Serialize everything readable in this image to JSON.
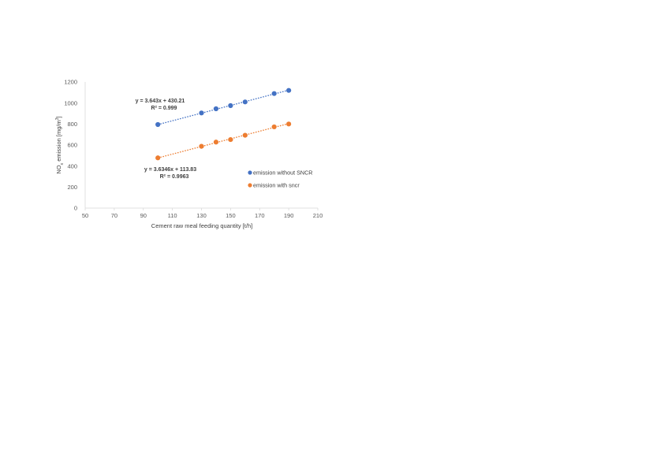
{
  "chart_data": {
    "type": "scatter",
    "title": "",
    "xlabel": "Cement raw meal feeding quantity [t/h]",
    "ylabel": {
      "prefix": "NO",
      "sub": "x",
      "suffix": " emission [mg/m",
      "sup": "3",
      "end": "]"
    },
    "xlim": [
      50,
      210
    ],
    "ylim": [
      0,
      1200
    ],
    "xticks": [
      50,
      70,
      90,
      110,
      130,
      150,
      170,
      190,
      210
    ],
    "yticks": [
      0,
      200,
      400,
      600,
      800,
      1000,
      1200
    ],
    "grid": false,
    "legend_position": "lower-right",
    "series": [
      {
        "name": "emission without SNCR",
        "color": "#4472C4",
        "x": [
          100,
          130,
          140,
          150,
          160,
          180,
          190
        ],
        "y": [
          795,
          905,
          945,
          975,
          1010,
          1090,
          1120
        ],
        "trendline": {
          "slope": 3.643,
          "intercept": 430.21,
          "x_range": [
            100,
            190
          ],
          "equation": "y = 3.643x + 430.21",
          "r2": "R² = 0.999"
        }
      },
      {
        "name": "emission with sncr",
        "color": "#ED7D31",
        "x": [
          100,
          130,
          140,
          150,
          160,
          180,
          190
        ],
        "y": [
          478,
          588,
          628,
          652,
          693,
          773,
          800
        ],
        "trendline": {
          "slope": 3.6346,
          "intercept": 113.83,
          "x_range": [
            100,
            190
          ],
          "equation": "y = 3.6346x + 113.83",
          "r2": "R² = 0.9963"
        }
      }
    ]
  }
}
